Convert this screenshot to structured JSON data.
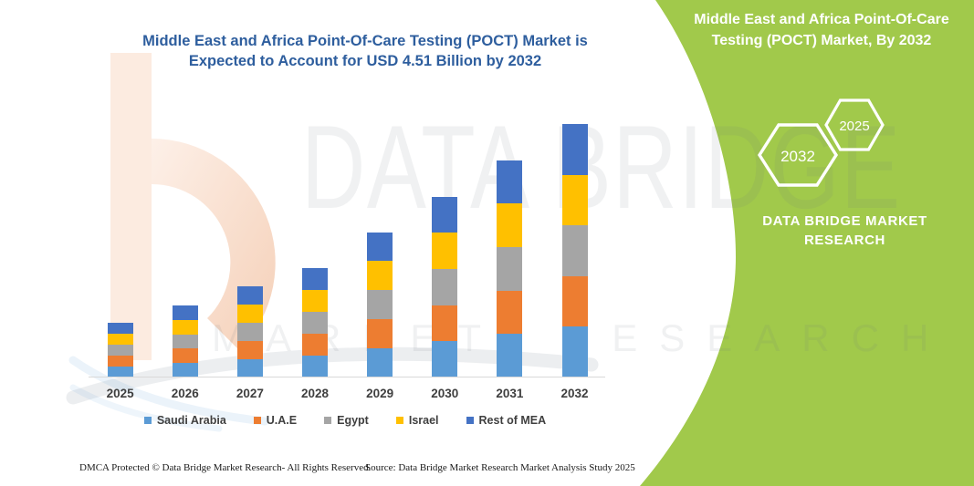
{
  "title": {
    "line1": "Middle East and Africa Point-Of-Care Testing (POCT) Market is",
    "line2": "Expected to Account for USD 4.51 Billion by 2032"
  },
  "chart_data": {
    "type": "bar",
    "subtype": "stacked",
    "unit": "USD Billion",
    "categories": [
      "2025",
      "2026",
      "2027",
      "2028",
      "2029",
      "2030",
      "2031",
      "2032"
    ],
    "series": [
      {
        "name": "Saudi Arabia",
        "color": "#5B9BD5",
        "values": [
          0.194,
          0.256,
          0.324,
          0.391,
          0.518,
          0.645,
          0.775,
          0.902
        ]
      },
      {
        "name": "U.A.E",
        "color": "#ED7D31",
        "values": [
          0.194,
          0.256,
          0.324,
          0.391,
          0.518,
          0.645,
          0.775,
          0.902
        ]
      },
      {
        "name": "Egypt",
        "color": "#A5A5A5",
        "values": [
          0.194,
          0.256,
          0.324,
          0.391,
          0.518,
          0.645,
          0.775,
          0.902
        ]
      },
      {
        "name": "Israel",
        "color": "#FFC000",
        "values": [
          0.194,
          0.256,
          0.324,
          0.391,
          0.518,
          0.645,
          0.775,
          0.902
        ]
      },
      {
        "name": "Rest of MEA",
        "color": "#4472C4",
        "values": [
          0.194,
          0.256,
          0.324,
          0.391,
          0.518,
          0.645,
          0.775,
          0.902
        ]
      }
    ],
    "totals": [
      0.97,
      1.28,
      1.62,
      1.96,
      2.59,
      3.23,
      3.88,
      4.51
    ],
    "title": "Middle East and Africa Point-Of-Care Testing (POCT) Market is Expected to Account for USD 4.51 Billion by 2032",
    "xlabel": "",
    "ylabel": "",
    "yaxis_visible": false,
    "grid": false,
    "legend_position": "bottom"
  },
  "green_panel": {
    "background_color": "#A1C94B",
    "heading_line1": "Middle East and Africa Point-Of-Care",
    "heading_line2": "Testing (POCT) Market, By 2032",
    "hex_small_label": "2025",
    "hex_large_label": "2032",
    "brand_line1": "DATA BRIDGE MARKET",
    "brand_line2": "RESEARCH"
  },
  "watermark": {
    "big_text": "DATA BRIDGE",
    "spaced_text": "MARKET RESEARCH"
  },
  "footer": {
    "left": "DMCA Protected © Data Bridge Market Research-  All Rights Reserved.",
    "right": "Source: Data Bridge Market Research  Market Analysis Study 2025"
  }
}
